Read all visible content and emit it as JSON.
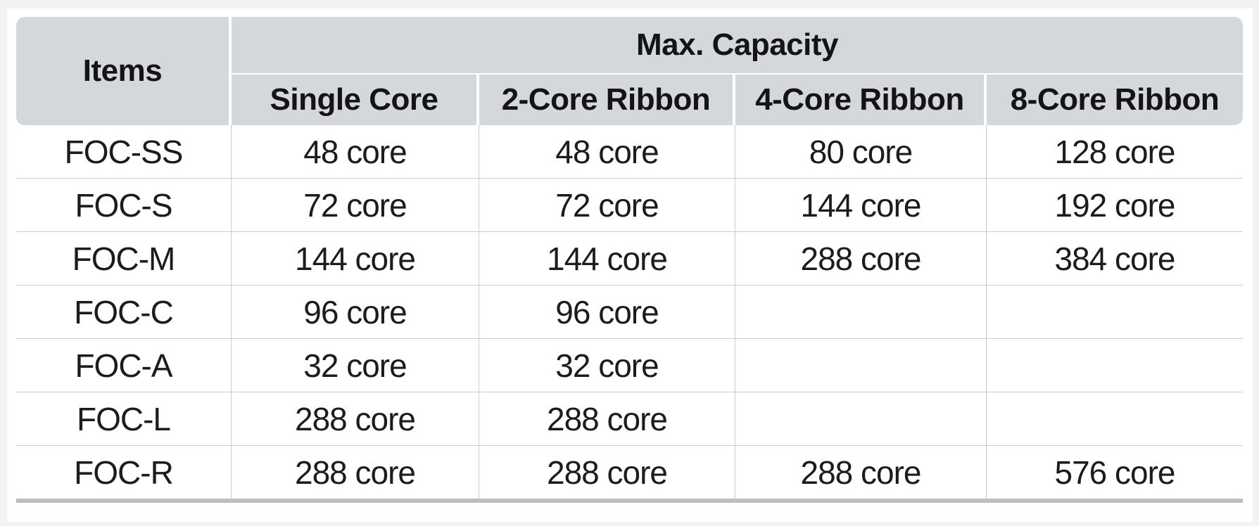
{
  "table": {
    "items_header": "Items",
    "group_header": "Max. Capacity",
    "columns": [
      "Single Core",
      "2-Core Ribbon",
      "4-Core Ribbon",
      "8-Core Ribbon"
    ],
    "rows": [
      {
        "item": "FOC-SS",
        "values": [
          "48 core",
          "48 core",
          "80 core",
          "128 core"
        ]
      },
      {
        "item": "FOC-S",
        "values": [
          "72 core",
          "72 core",
          "144 core",
          "192 core"
        ]
      },
      {
        "item": "FOC-M",
        "values": [
          "144 core",
          "144 core",
          "288 core",
          "384 core"
        ]
      },
      {
        "item": "FOC-C",
        "values": [
          "96 core",
          "96 core",
          "",
          ""
        ]
      },
      {
        "item": "FOC-A",
        "values": [
          "32 core",
          "32 core",
          "",
          ""
        ]
      },
      {
        "item": "FOC-L",
        "values": [
          "288 core",
          "288 core",
          "",
          ""
        ]
      },
      {
        "item": "FOC-R",
        "values": [
          "288 core",
          "288 core",
          "288 core",
          "576 core"
        ]
      }
    ]
  },
  "colors": {
    "header_bg": "#d4d8dc",
    "grid_line": "#c9ccd0",
    "text": "#1c1c1c"
  }
}
